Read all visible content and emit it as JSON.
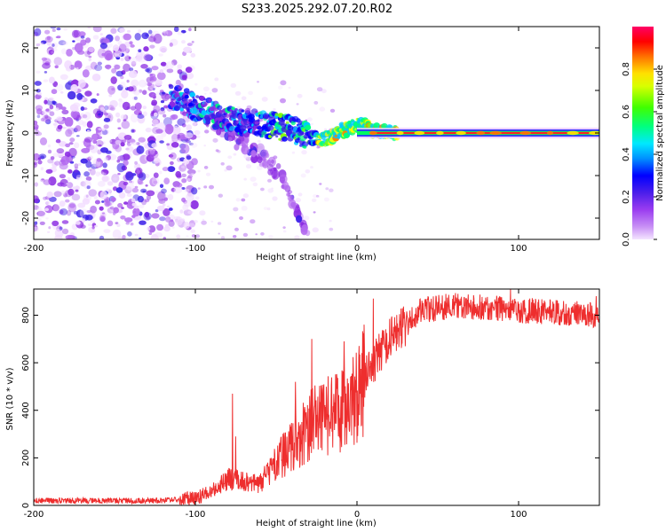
{
  "title": "S233.2025.292.07.20.R02",
  "chart_data": [
    {
      "type": "heatmap",
      "name": "spectrogram",
      "xlabel": "Height of straight line (km)",
      "ylabel": "Frequency (Hz)",
      "xlim": [
        -200,
        150
      ],
      "ylim": [
        -25,
        25
      ],
      "xticks": [
        -200,
        -100,
        0,
        100
      ],
      "yticks": [
        -20,
        -10,
        0,
        10,
        20
      ],
      "xtick_labels": [
        "-200",
        "-100",
        "0",
        "100"
      ],
      "ytick_labels": [
        "-20",
        "-10",
        "0",
        "10",
        "20"
      ],
      "colorbar": {
        "label": "Normalized spectral amplitude",
        "range": [
          0,
          1
        ],
        "ticks": [
          0.0,
          0.2,
          0.4,
          0.6,
          0.8
        ],
        "tick_labels": [
          "0.0",
          "0.2",
          "0.4",
          "0.6",
          "0.8"
        ],
        "colormap": [
          "#f2ddff",
          "#b46cf0",
          "#8a2be2",
          "#3a1ee8",
          "#0000ff",
          "#00c8ff",
          "#00ff80",
          "#80ff00",
          "#ffff00",
          "#ff8000",
          "#ff0000",
          "#ff0066"
        ]
      },
      "features": {
        "noise_region_x": [
          -200,
          -110
        ],
        "signal_track": {
          "x": [
            -115,
            -100,
            -85,
            -70,
            -55,
            -40,
            -30,
            -20,
            -15,
            -10,
            -5,
            0,
            5,
            10,
            20,
            150
          ],
          "y": [
            9,
            6,
            4,
            2.5,
            2,
            0.8,
            -1,
            -1.5,
            -0.8,
            0.5,
            1,
            2,
            1.5,
            0.5,
            0,
            0
          ]
        },
        "diverging_branch": {
          "x": [
            -100,
            -80,
            -60,
            -45,
            -35,
            -30
          ],
          "y": [
            6,
            0,
            -5,
            -11,
            -20,
            -25
          ]
        }
      }
    },
    {
      "type": "line",
      "name": "snr",
      "xlabel": "Height of straight line (km)",
      "ylabel": "SNR (10 * v/v)",
      "xlim": [
        -200,
        150
      ],
      "ylim": [
        0,
        910
      ],
      "xticks": [
        -200,
        -100,
        0,
        100
      ],
      "yticks": [
        0,
        200,
        400,
        600,
        800
      ],
      "xtick_labels": [
        "-200",
        "-100",
        "0",
        "100"
      ],
      "ytick_labels": [
        "0",
        "200",
        "400",
        "600",
        "800"
      ],
      "color": "#ee2e2e",
      "trend": {
        "x": [
          -200,
          -120,
          -100,
          -90,
          -80,
          -70,
          -60,
          -50,
          -40,
          -30,
          -25,
          -20,
          -10,
          0,
          10,
          20,
          30,
          40,
          60,
          100,
          150
        ],
        "y": [
          20,
          20,
          30,
          60,
          110,
          100,
          90,
          180,
          250,
          330,
          360,
          370,
          400,
          470,
          600,
          700,
          760,
          820,
          840,
          820,
          800
        ]
      },
      "spikes": [
        {
          "x": -77,
          "y": 470
        },
        {
          "x": -75,
          "y": 290
        },
        {
          "x": -38,
          "y": 520
        },
        {
          "x": -28,
          "y": 700
        },
        {
          "x": -8,
          "y": 690
        },
        {
          "x": 10,
          "y": 870
        },
        {
          "x": 95,
          "y": 910
        },
        {
          "x": 148,
          "y": 880
        }
      ]
    }
  ]
}
